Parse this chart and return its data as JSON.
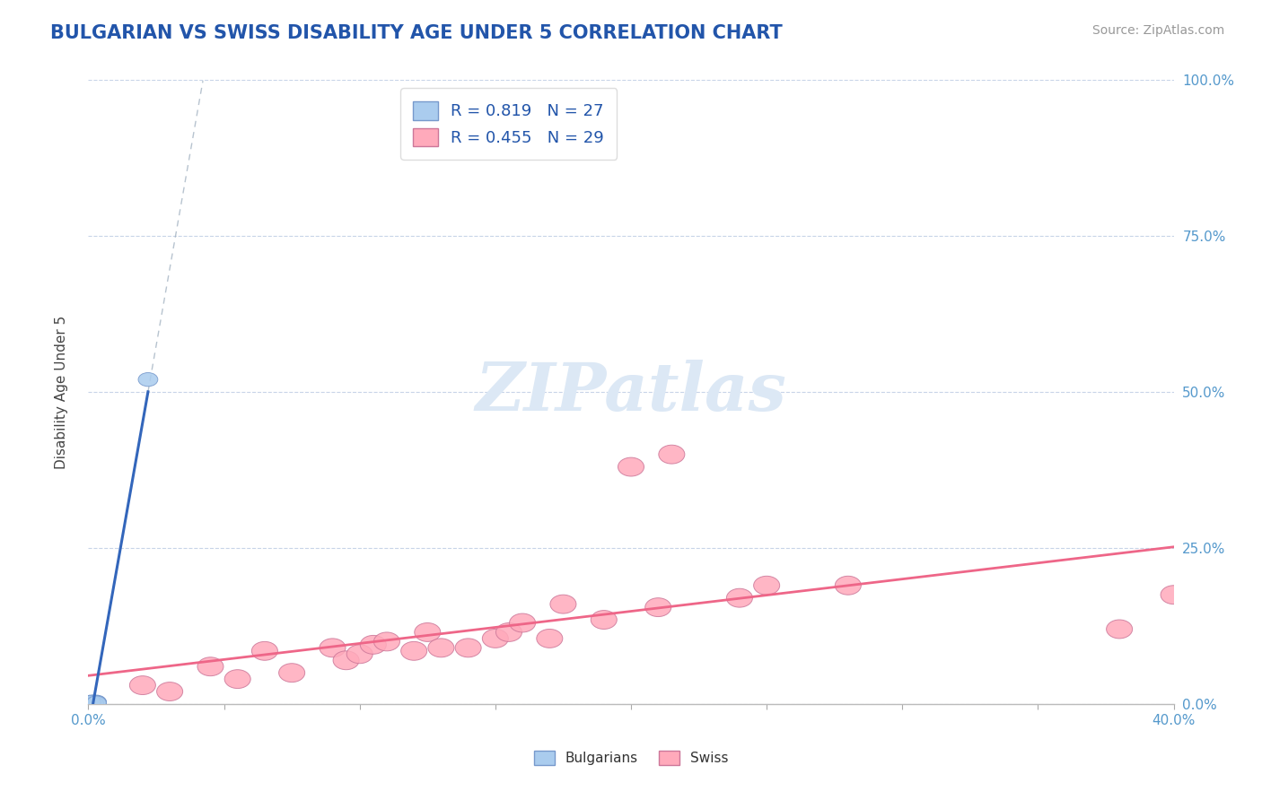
{
  "title": "BULGARIAN VS SWISS DISABILITY AGE UNDER 5 CORRELATION CHART",
  "source": "Source: ZipAtlas.com",
  "ylabel_label": "Disability Age Under 5",
  "bg_color": "#ffffff",
  "grid_color": "#c8d4e8",
  "title_color": "#2255aa",
  "source_color": "#999999",
  "axis_label_color": "#5599cc",
  "blue_scatter_color": "#aaccee",
  "pink_scatter_color": "#ffaabb",
  "blue_line_color": "#3366bb",
  "pink_line_color": "#ee6688",
  "dashed_line_color": "#99aabb",
  "R_blue": 0.819,
  "N_blue": 27,
  "R_pink": 0.455,
  "N_pink": 29,
  "bulgarian_x": [
    0.001,
    0.002,
    0.001,
    0.003,
    0.002,
    0.001,
    0.002,
    0.001,
    0.003,
    0.001,
    0.002,
    0.001,
    0.003,
    0.002,
    0.001,
    0.002,
    0.001,
    0.003,
    0.002,
    0.001,
    0.002,
    0.003,
    0.001,
    0.002,
    0.001,
    0.003,
    0.022
  ],
  "bulgarian_y": [
    0.002,
    0.003,
    0.001,
    0.002,
    0.001,
    0.003,
    0.002,
    0.001,
    0.003,
    0.002,
    0.001,
    0.002,
    0.001,
    0.003,
    0.002,
    0.001,
    0.002,
    0.003,
    0.001,
    0.002,
    0.003,
    0.001,
    0.002,
    0.001,
    0.003,
    0.002,
    0.52
  ],
  "swiss_x": [
    0.02,
    0.03,
    0.045,
    0.055,
    0.065,
    0.075,
    0.09,
    0.095,
    0.1,
    0.105,
    0.11,
    0.12,
    0.125,
    0.13,
    0.14,
    0.15,
    0.155,
    0.16,
    0.17,
    0.175,
    0.19,
    0.2,
    0.21,
    0.215,
    0.24,
    0.25,
    0.28,
    0.38,
    0.4
  ],
  "swiss_y": [
    0.03,
    0.02,
    0.06,
    0.04,
    0.085,
    0.05,
    0.09,
    0.07,
    0.08,
    0.095,
    0.1,
    0.085,
    0.115,
    0.09,
    0.09,
    0.105,
    0.115,
    0.13,
    0.105,
    0.16,
    0.135,
    0.38,
    0.155,
    0.4,
    0.17,
    0.19,
    0.19,
    0.12,
    0.175
  ],
  "xlim": [
    0.0,
    0.4
  ],
  "ylim": [
    0.0,
    1.0
  ],
  "x_ticks": [
    0.0,
    0.05,
    0.1,
    0.15,
    0.2,
    0.25,
    0.3,
    0.35,
    0.4
  ],
  "y_ticks": [
    0.0,
    0.25,
    0.5,
    0.75,
    1.0
  ],
  "watermark": "ZIPatlas",
  "watermark_color": "#dce8f5",
  "figsize": [
    14.06,
    8.92
  ],
  "dpi": 100
}
